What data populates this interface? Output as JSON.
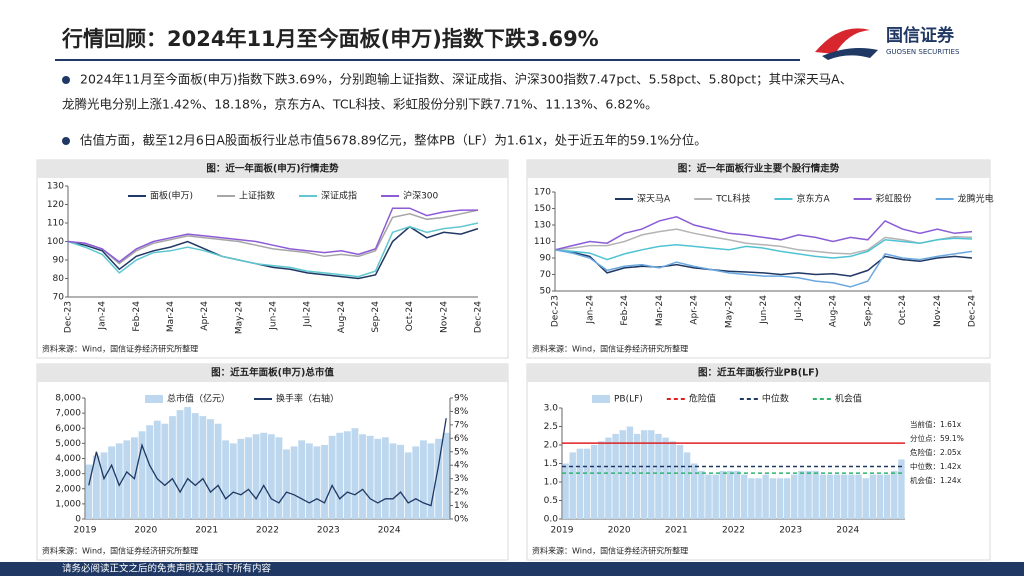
{
  "header": {
    "title": "行情回顾：2024年11月至今面板(申万)指数下跌3.69%",
    "logo_name": "国信证券",
    "logo_en": "GUOSEN SECURITIES"
  },
  "bullets": [
    {
      "lines": [
        "2024年11月至今面板(申万)指数下跌3.69%，分别跑输上证指数、深证成指、沪深300指数7.47pct、5.58pct、5.80pct；其中深天马A、",
        "龙腾光电分别上涨1.42%、18.18%，京东方A、TCL科技、彩虹股份分别下跌7.71%、11.13%、6.82%。"
      ]
    },
    {
      "lines": [
        "估值方面，截至12月6日A股面板行业总市值5678.89亿元，整体PB（LF）为1.61x，处于近五年的59.1%分位。"
      ]
    }
  ],
  "footer": "请务必阅读正文之后的免责声明及其项下所有内容",
  "chart_data": [
    {
      "type": "line",
      "title": "图：近一年面板(申万)行情走势",
      "source": "资料来源：Wind，国信证券经济研究所整理",
      "categories": [
        "Dec-23",
        null,
        "Jan-24",
        null,
        "Feb-24",
        null,
        "Mar-24",
        null,
        "Apr-24",
        null,
        "May-24",
        null,
        "Jun-24",
        null,
        "Jul-24",
        null,
        "Aug-24",
        null,
        "Sep-24",
        null,
        "Oct-24",
        null,
        "Nov-24",
        null,
        "Dec-24"
      ],
      "ylim": [
        70,
        130
      ],
      "yticks": [
        70,
        80,
        90,
        100,
        110,
        120,
        130
      ],
      "series": [
        {
          "name": "面板(申万)",
          "color": "#1f3864",
          "values": [
            100,
            98,
            95,
            85,
            92,
            95,
            97,
            100,
            96,
            92,
            90,
            88,
            86,
            85,
            83,
            82,
            81,
            80,
            82,
            100,
            108,
            102,
            105,
            104,
            107
          ]
        },
        {
          "name": "上证指数",
          "color": "#a6a6a6",
          "values": [
            100,
            99,
            96,
            88,
            95,
            99,
            101,
            103,
            102,
            101,
            100,
            98,
            96,
            95,
            94,
            92,
            93,
            92,
            95,
            113,
            115,
            112,
            113,
            115,
            117
          ]
        },
        {
          "name": "深证成指",
          "color": "#5fc8d0",
          "values": [
            100,
            97,
            93,
            83,
            90,
            94,
            95,
            97,
            95,
            92,
            90,
            88,
            87,
            86,
            84,
            83,
            82,
            81,
            84,
            105,
            108,
            105,
            107,
            108,
            110
          ]
        },
        {
          "name": "沪深300",
          "color": "#8e5bd6",
          "values": [
            100,
            99,
            96,
            89,
            96,
            100,
            102,
            104,
            103,
            102,
            101,
            100,
            98,
            96,
            95,
            94,
            95,
            93,
            96,
            118,
            118,
            114,
            116,
            117,
            117
          ]
        }
      ]
    },
    {
      "type": "line",
      "title": "图：近一年面板行业主要个股行情走势",
      "source": "资料来源：Wind，国信证券经济研究所整理",
      "categories": [
        "Dec-23",
        null,
        "Jan-24",
        null,
        "Feb-24",
        null,
        "Mar-24",
        null,
        "Apr-24",
        null,
        "May-24",
        null,
        "Jun-24",
        null,
        "Jul-24",
        null,
        "Aug-24",
        null,
        "Sep-24",
        null,
        "Oct-24",
        null,
        "Nov-24",
        null,
        "Dec-24"
      ],
      "ylim": [
        50,
        170
      ],
      "yticks": [
        50,
        70,
        90,
        110,
        130,
        150,
        170
      ],
      "series": [
        {
          "name": "深天马A",
          "color": "#1f3864",
          "values": [
            100,
            97,
            92,
            72,
            78,
            80,
            79,
            82,
            78,
            76,
            74,
            73,
            72,
            70,
            72,
            70,
            71,
            68,
            75,
            92,
            88,
            86,
            90,
            92,
            90
          ]
        },
        {
          "name": "TCL科技",
          "color": "#b4b4b4",
          "values": [
            100,
            102,
            105,
            105,
            110,
            118,
            122,
            125,
            120,
            116,
            112,
            108,
            106,
            104,
            100,
            98,
            96,
            95,
            100,
            115,
            112,
            108,
            112,
            116,
            115
          ]
        },
        {
          "name": "京东方A",
          "color": "#4fc3d3",
          "values": [
            100,
            98,
            96,
            88,
            95,
            100,
            104,
            106,
            104,
            102,
            100,
            104,
            102,
            98,
            95,
            92,
            90,
            92,
            98,
            112,
            110,
            108,
            112,
            114,
            113
          ]
        },
        {
          "name": "彩虹股份",
          "color": "#8a5cd6",
          "values": [
            100,
            105,
            110,
            108,
            120,
            125,
            135,
            140,
            130,
            125,
            120,
            118,
            115,
            112,
            118,
            115,
            110,
            115,
            112,
            135,
            125,
            120,
            125,
            120,
            122
          ]
        },
        {
          "name": "龙腾光电",
          "color": "#6aa8e0",
          "values": [
            100,
            96,
            90,
            75,
            80,
            82,
            78,
            85,
            80,
            76,
            72,
            70,
            68,
            68,
            66,
            62,
            60,
            55,
            62,
            95,
            90,
            88,
            92,
            95,
            98
          ]
        }
      ]
    },
    {
      "type": "bar_line",
      "title": "图：近五年面板(申万)总市值",
      "source": "资料来源：Wind，国信证券经济研究所整理",
      "categories": [
        "2019",
        null,
        null,
        null,
        null,
        null,
        null,
        null,
        "2020",
        null,
        null,
        null,
        null,
        null,
        null,
        null,
        "2021",
        null,
        null,
        null,
        null,
        null,
        null,
        null,
        "2022",
        null,
        null,
        null,
        null,
        null,
        null,
        null,
        "2023",
        null,
        null,
        null,
        null,
        null,
        null,
        null,
        "2024",
        null,
        null,
        null,
        null,
        null,
        null,
        null
      ],
      "ylim": [
        0,
        8000
      ],
      "yticks": [
        0,
        {
          "value": 1000,
          "label": "1,000"
        },
        {
          "value": 2000,
          "label": "2,000"
        },
        {
          "value": 3000,
          "label": "3,000"
        },
        {
          "value": 4000,
          "label": "4,000"
        },
        {
          "value": 5000,
          "label": "5,000"
        },
        {
          "value": 6000,
          "label": "6,000"
        },
        {
          "value": 7000,
          "label": "7,000"
        },
        {
          "value": 8000,
          "label": "8,000"
        }
      ],
      "y2lim": [
        0,
        9
      ],
      "y2ticks": [
        {
          "value": 0,
          "label": "0%"
        },
        {
          "value": 1,
          "label": "1%"
        },
        {
          "value": 2,
          "label": "2%"
        },
        {
          "value": 3,
          "label": "3%"
        },
        {
          "value": 4,
          "label": "4%"
        },
        {
          "value": 5,
          "label": "5%"
        },
        {
          "value": 6,
          "label": "6%"
        },
        {
          "value": 7,
          "label": "7%"
        },
        {
          "value": 8,
          "label": "8%"
        },
        {
          "value": 9,
          "label": "9%"
        }
      ],
      "series": [
        {
          "name": "总市值（亿元）",
          "color": "#bdd7ee",
          "values": [
            3600,
            4200,
            4400,
            4800,
            5000,
            5200,
            5400,
            5800,
            6200,
            6500,
            6300,
            6800,
            7200,
            7400,
            7000,
            6800,
            6600,
            6300,
            5200,
            5000,
            5300,
            5400,
            5600,
            5700,
            5600,
            5400,
            4600,
            4800,
            5200,
            5000,
            4800,
            4900,
            5500,
            5700,
            5800,
            6000,
            5600,
            5500,
            5300,
            5400,
            5000,
            4900,
            4400,
            4800,
            5200,
            5000,
            5300,
            5700
          ]
        },
        {
          "name": "换手率（右轴）",
          "color": "#1f3864",
          "axis": "y2",
          "values": [
            2.5,
            5,
            3,
            4,
            2.5,
            3.5,
            3,
            5.5,
            4,
            3,
            2.5,
            3,
            2,
            3,
            2.5,
            3,
            2,
            2.5,
            1.5,
            2,
            1.8,
            2.2,
            1.5,
            2.5,
            1.5,
            1.2,
            2,
            1.8,
            1.5,
            1.2,
            1.5,
            1.2,
            2.5,
            1.5,
            2,
            1.8,
            2.2,
            1.5,
            1.2,
            1.5,
            1.5,
            2,
            1.2,
            1.5,
            1.2,
            1,
            4,
            7.5
          ]
        }
      ]
    },
    {
      "type": "bar",
      "title": "图：近五年面板行业PB(LF)",
      "source": "资料来源：Wind，国信证券经济研究所整理",
      "categories": [
        "2019",
        null,
        null,
        null,
        null,
        null,
        null,
        null,
        "2020",
        null,
        null,
        null,
        null,
        null,
        null,
        null,
        "2021",
        null,
        null,
        null,
        null,
        null,
        null,
        null,
        "2022",
        null,
        null,
        null,
        null,
        null,
        null,
        null,
        "2023",
        null,
        null,
        null,
        null,
        null,
        null,
        null,
        "2024",
        null,
        null,
        null,
        null,
        null,
        null,
        null
      ],
      "ylim": [
        0,
        3
      ],
      "yticks": [
        {
          "value": 0,
          "label": "0.0"
        },
        0.5,
        {
          "value": 1,
          "label": "1.0"
        },
        1.5,
        {
          "value": 2,
          "label": "2.0"
        },
        2.5,
        {
          "value": 3,
          "label": "3.0"
        }
      ],
      "series": [
        {
          "name": "PB(LF)",
          "color": "#bdd7ee",
          "values": [
            1.5,
            1.8,
            1.9,
            1.9,
            2.0,
            2.1,
            2.2,
            2.3,
            2.4,
            2.5,
            2.3,
            2.4,
            2.4,
            2.3,
            2.2,
            2.1,
            2.0,
            1.8,
            1.5,
            1.3,
            1.2,
            1.2,
            1.3,
            1.3,
            1.3,
            1.2,
            1.1,
            1.1,
            1.2,
            1.1,
            1.1,
            1.1,
            1.2,
            1.3,
            1.3,
            1.3,
            1.2,
            1.2,
            1.2,
            1.2,
            1.2,
            1.2,
            1.1,
            1.2,
            1.2,
            1.2,
            1.3,
            1.61
          ]
        }
      ],
      "reference_lines": [
        {
          "name": "危险值",
          "color": "#e02020",
          "value": 2.05
        },
        {
          "name": "中位数",
          "color": "#1f3864",
          "value": 1.42
        },
        {
          "name": "机会值",
          "color": "#2fb36e",
          "value": 1.24
        }
      ],
      "annotations": [
        "当前值：1.61x",
        "分位点：59.1%",
        "危险值：2.05x",
        "中位数：1.42x",
        "机会值：1.24x"
      ]
    }
  ]
}
